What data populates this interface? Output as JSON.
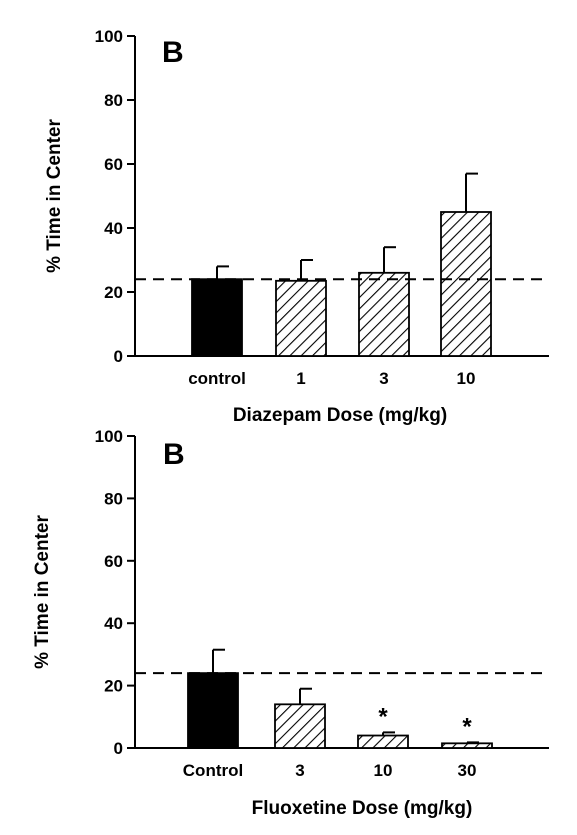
{
  "chart_data": [
    {
      "type": "bar",
      "panel_label": "B",
      "categories": [
        "control",
        "1",
        "3",
        "10"
      ],
      "values": [
        24,
        23.5,
        26,
        45
      ],
      "errors": [
        4,
        6.5,
        8,
        12
      ],
      "fills": [
        "solid",
        "hatched",
        "hatched",
        "hatched"
      ],
      "significance": [
        "",
        "",
        "",
        ""
      ],
      "xlabel": "Diazepam Dose (mg/kg)",
      "ylabel": "% Time in Center",
      "ylim": [
        0,
        100
      ],
      "yticks": [
        "0",
        "20",
        "40",
        "60",
        "80",
        "100"
      ],
      "reference_line": {
        "y": 24,
        "style": "dashed"
      },
      "grid": false
    },
    {
      "type": "bar",
      "panel_label": "B",
      "categories": [
        "Control",
        "3",
        "10",
        "30"
      ],
      "values": [
        24,
        14,
        4,
        1.5
      ],
      "errors": [
        7.5,
        5,
        1,
        0.3
      ],
      "fills": [
        "solid",
        "hatched",
        "hatched",
        "hatched"
      ],
      "significance": [
        "",
        "",
        "*",
        "*"
      ],
      "xlabel": "Fluoxetine Dose (mg/kg)",
      "ylabel": "% Time in Center",
      "ylim": [
        0,
        100
      ],
      "yticks": [
        "0",
        "20",
        "40",
        "60",
        "80",
        "100"
      ],
      "reference_line": {
        "y": 24,
        "style": "dashed"
      },
      "grid": false
    }
  ],
  "colors": {
    "solid_bar": "#000000",
    "hatch": "#000000",
    "background": "#ffffff"
  }
}
